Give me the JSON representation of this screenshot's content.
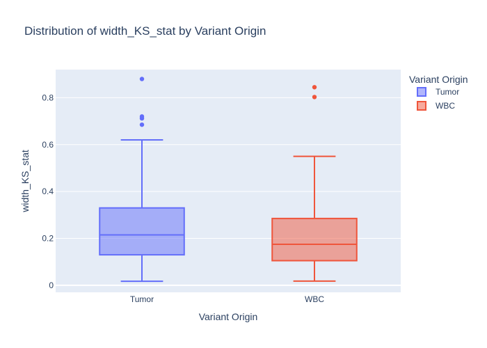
{
  "chart_data": {
    "type": "box",
    "title": "Distribution of width_KS_stat by Variant Origin",
    "xlabel": "Variant Origin",
    "ylabel": "width_KS_stat",
    "categories": [
      "Tumor",
      "WBC"
    ],
    "ylim": [
      -0.03,
      0.92
    ],
    "yticks": [
      0,
      0.2,
      0.4,
      0.6,
      0.8
    ],
    "ytick_labels": [
      "0",
      "0.2",
      "0.4",
      "0.6",
      "0.8"
    ],
    "grid": true,
    "legend_placement": "top-right",
    "legend_title": "Variant Origin",
    "series": [
      {
        "name": "Tumor",
        "category": "Tumor",
        "color": "#636efa",
        "fill": "rgba(99,110,250,0.5)",
        "box": {
          "lowerfence": 0.017,
          "q1": 0.13,
          "median": 0.215,
          "q3": 0.33,
          "upperfence": 0.62
        },
        "outliers": [
          0.685,
          0.712,
          0.72,
          0.88
        ]
      },
      {
        "name": "WBC",
        "category": "WBC",
        "color": "#ef553b",
        "fill": "rgba(239,85,59,0.5)",
        "box": {
          "lowerfence": 0.018,
          "q1": 0.105,
          "median": 0.175,
          "q3": 0.285,
          "upperfence": 0.55
        },
        "outliers": [
          0.803,
          0.845
        ]
      }
    ]
  }
}
